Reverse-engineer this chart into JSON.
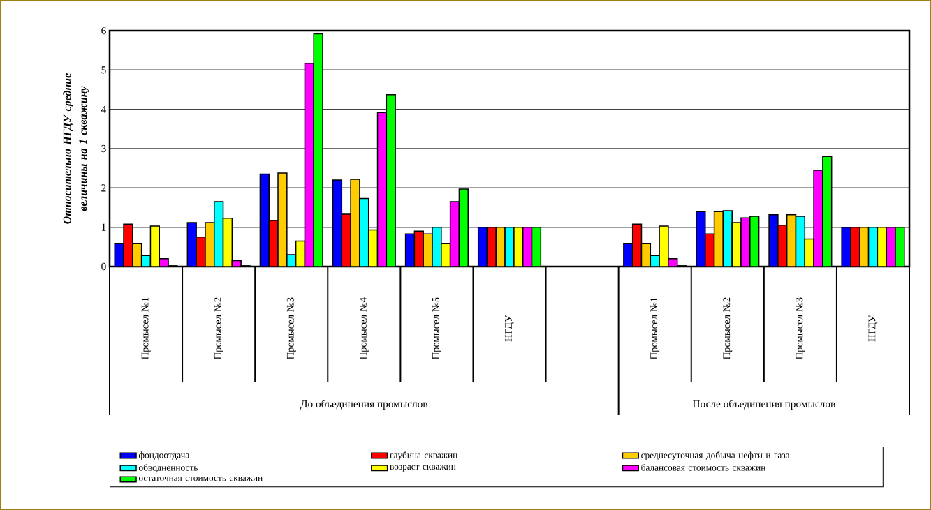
{
  "chart_data": {
    "type": "bar",
    "ylabel": "Относительно НГДУ средние величины на  1 скважину",
    "categories": [
      "Промысел  №1",
      "Промысел  №2",
      "Промысел  №3",
      "Промысел  №4",
      "Промысел  №5",
      "НГДУ",
      null,
      "Промысел  №1",
      "Промысел  №2",
      "Промысел  №3",
      "НГДУ"
    ],
    "series": [
      {
        "name": "фондоотдача",
        "color": "#0000ff",
        "values": [
          0.58,
          1.12,
          2.35,
          2.2,
          0.83,
          1.0,
          null,
          0.58,
          1.4,
          1.32,
          1.0
        ]
      },
      {
        "name": "глубина скважин",
        "color": "#ff0000",
        "values": [
          1.08,
          0.75,
          1.17,
          1.33,
          0.9,
          1.0,
          null,
          1.08,
          0.83,
          1.05,
          1.0
        ]
      },
      {
        "name": "среднесуточная добыча нефти и газа",
        "color": "#ffcc00",
        "values": [
          0.58,
          1.12,
          2.38,
          2.22,
          0.83,
          1.0,
          null,
          0.58,
          1.4,
          1.32,
          1.0
        ]
      },
      {
        "name": "обводненность",
        "color": "#00ffff",
        "values": [
          0.28,
          1.65,
          0.3,
          1.73,
          1.0,
          1.0,
          null,
          0.28,
          1.42,
          1.28,
          1.0
        ]
      },
      {
        "name": "возраст скважин",
        "color": "#ffff00",
        "values": [
          1.03,
          1.23,
          0.65,
          0.93,
          0.58,
          1.0,
          null,
          1.03,
          1.12,
          0.7,
          1.0
        ]
      },
      {
        "name": "балансовая стоимость скважин",
        "color": "#ff00ff",
        "values": [
          0.2,
          0.15,
          5.17,
          3.92,
          1.65,
          1.0,
          null,
          0.2,
          1.24,
          2.45,
          1.0
        ]
      },
      {
        "name": "остаточная стоимость скважин",
        "color": "#00ff00",
        "values": [
          0.02,
          0.02,
          5.92,
          4.37,
          1.97,
          1.0,
          null,
          0.02,
          1.28,
          2.8,
          1.0
        ]
      }
    ],
    "annotations": [
      "До объединения промыслов",
      "После объединения промыслов"
    ],
    "ylim": [
      0,
      6
    ],
    "yticks": [
      0,
      1,
      2,
      3,
      4,
      5,
      6
    ],
    "grid": "y",
    "legend": "bottom"
  }
}
